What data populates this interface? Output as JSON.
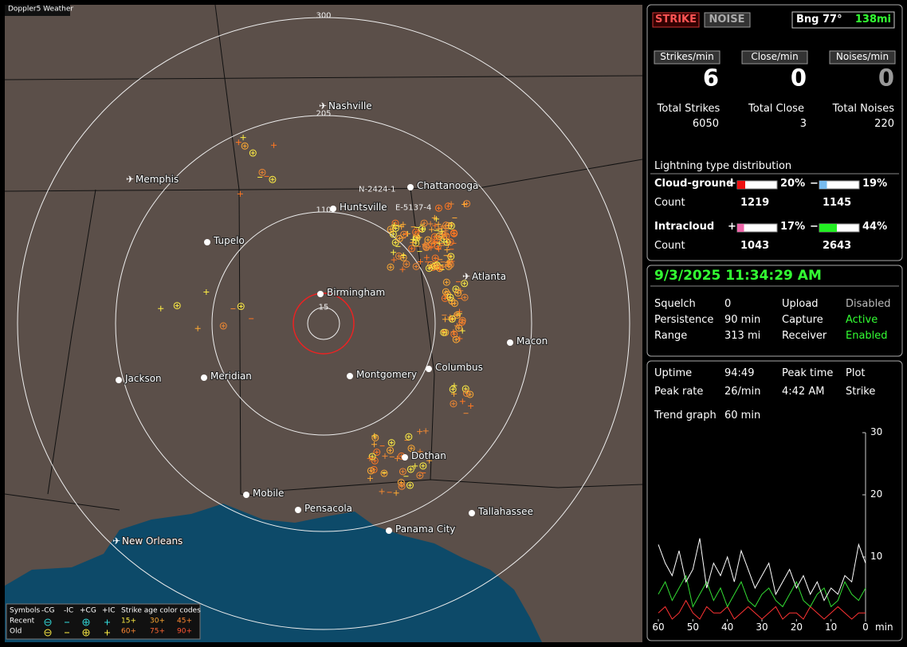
{
  "map": {
    "badge": "Doppler5 Weather",
    "ring_labels": [
      "300",
      "205",
      "110",
      "15"
    ],
    "cities": [
      "Nashville",
      "Memphis",
      "Chattanooga",
      "Huntsville",
      "Tupelo",
      "Birmingham",
      "Atlanta",
      "Macon",
      "Montgomery",
      "Columbus",
      "Jackson",
      "Meridian",
      "Dothan",
      "Mobile",
      "Pensacola",
      "Tallahassee",
      "Panama City",
      "New Orleans"
    ],
    "sensor_labels": [
      "N-2424-1",
      "E-5137-4"
    ],
    "legend": {
      "symbols": "Symbols",
      "headers": [
        "-CG",
        "-IC",
        "+CG",
        "+IC"
      ],
      "age_title": "Strike age color codes",
      "recent": "Recent",
      "old": "Old",
      "recent_ages": [
        "15+",
        "30+",
        "45+"
      ],
      "old_ages": [
        "60+",
        "75+",
        "90+"
      ]
    }
  },
  "status": {
    "strike": "STRIKE",
    "noise": "NOISE",
    "bearing": "Bng 77°",
    "distance": "138mi"
  },
  "rates": [
    {
      "label": "Strikes/min",
      "value": 6
    },
    {
      "label": "Close/min",
      "value": 0
    },
    {
      "label": "Noises/min",
      "value": 0
    }
  ],
  "totals": [
    {
      "label": "Total Strikes",
      "value": 6050
    },
    {
      "label": "Total Close",
      "value": 3
    },
    {
      "label": "Total Noises",
      "value": 220
    }
  ],
  "distribution": {
    "title": "Lightning type distribution",
    "count_label": "Count",
    "rows": [
      {
        "name": "Cloud-ground",
        "pos_sign": "+",
        "neg_sign": "−",
        "pos_pct": {
          "value": 20,
          "label": "20%"
        },
        "neg_pct": {
          "value": 19,
          "label": "19%"
        },
        "pos_count": 1219,
        "neg_count": 1145
      },
      {
        "name": "Intracloud",
        "pos_sign": "+",
        "neg_sign": "−",
        "pos_pct": {
          "value": 17,
          "label": "17%"
        },
        "neg_pct": {
          "value": 44,
          "label": "44%"
        },
        "pos_count": 1043,
        "neg_count": 2643
      }
    ]
  },
  "clock": "9/3/2025 11:34:29 AM",
  "settings": [
    [
      "Squelch",
      0,
      "Upload",
      "Disabled"
    ],
    [
      "Persistence",
      "90 min",
      "Capture",
      "Active"
    ],
    [
      "Range",
      "313 mi",
      "Receiver",
      "Enabled"
    ]
  ],
  "stats": [
    [
      "Uptime",
      "94:49",
      "Peak time",
      "Plot"
    ],
    [
      "Peak rate",
      "26/min",
      "4:42 AM",
      "Strike"
    ],
    [
      "Trend graph",
      "60 min"
    ]
  ],
  "trend_graph": {
    "type": "line",
    "xlabel": "min",
    "x": [
      60,
      58,
      56,
      54,
      52,
      50,
      48,
      46,
      44,
      42,
      40,
      38,
      36,
      34,
      32,
      30,
      28,
      26,
      24,
      22,
      20,
      18,
      16,
      14,
      12,
      10,
      8,
      6,
      4,
      2,
      0
    ],
    "xlim": [
      60,
      0
    ],
    "xticks": [
      60,
      50,
      40,
      30,
      20,
      10,
      0
    ],
    "ylim": [
      0,
      30
    ],
    "yticks": [
      10,
      20,
      30
    ],
    "series": [
      {
        "color": "#ffffff",
        "values": [
          12,
          9,
          7,
          11,
          6,
          8,
          13,
          5,
          9,
          7,
          10,
          6,
          11,
          8,
          5,
          7,
          9,
          4,
          6,
          8,
          5,
          7,
          4,
          6,
          3,
          5,
          4,
          7,
          6,
          12,
          9
        ]
      },
      {
        "color": "#33dd33",
        "values": [
          4,
          6,
          3,
          5,
          7,
          2,
          4,
          6,
          3,
          5,
          2,
          4,
          6,
          3,
          2,
          4,
          5,
          3,
          2,
          4,
          6,
          3,
          2,
          4,
          5,
          2,
          3,
          6,
          4,
          3,
          5
        ]
      },
      {
        "color": "#ff3333",
        "values": [
          1,
          2,
          0,
          1,
          3,
          1,
          0,
          2,
          1,
          1,
          2,
          0,
          1,
          2,
          1,
          0,
          1,
          2,
          0,
          1,
          1,
          0,
          2,
          1,
          0,
          1,
          2,
          1,
          0,
          1,
          1
        ]
      }
    ]
  }
}
